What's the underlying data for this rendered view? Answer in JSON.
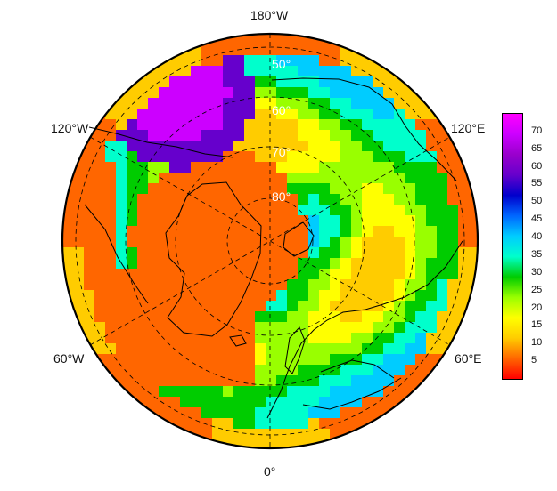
{
  "map": {
    "projection": "north-polar-stereographic",
    "labels": {
      "top": "180°W",
      "bottom": "0°",
      "upper_left": "120°W",
      "upper_right": "120°E",
      "lower_left": "60°W",
      "lower_right": "60°E"
    },
    "latitude_labels": [
      "50°",
      "60°",
      "70°",
      "80°"
    ]
  },
  "colorbar": {
    "ticks": [
      "70",
      "65",
      "60",
      "55",
      "50",
      "45",
      "40",
      "35",
      "30",
      "25",
      "20",
      "15",
      "10",
      "5"
    ],
    "min": 0,
    "max": 75,
    "colors": [
      "#ff0000",
      "#ff6600",
      "#ffcc00",
      "#ffff00",
      "#99ff00",
      "#00cc00",
      "#00ffcc",
      "#00ccff",
      "#0066ff",
      "#0000cc",
      "#6600cc",
      "#9900cc",
      "#cc00ff",
      "#ff00ff"
    ]
  }
}
